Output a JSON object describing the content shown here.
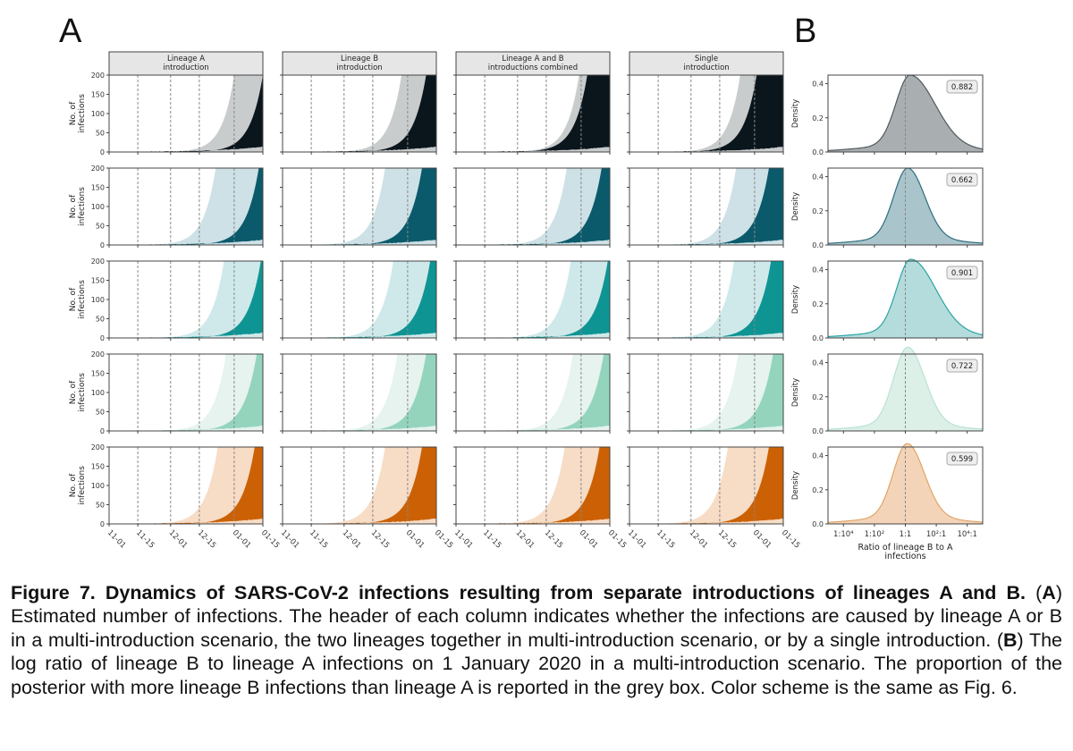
{
  "panels": {
    "a_label": "A",
    "b_label": "B"
  },
  "chart_data": [
    {
      "type": "area",
      "title": "A: Estimated number of infections",
      "ylabel": "No. of\ninfections",
      "ylim": [
        0,
        200
      ],
      "yticks": [
        "0",
        "50",
        "100",
        "150",
        "200"
      ],
      "xticks": [
        "11-01",
        "11-15",
        "12-01",
        "12-15",
        "01-01",
        "01-15"
      ],
      "vlines_at": [
        "11-15",
        "12-01",
        "12-15",
        "01-01"
      ],
      "columns": [
        "Lineage A\nintroduction",
        "Lineage B\nintroduction",
        "Lineage A and B\nintroductions combined",
        "Single\nintroduction"
      ],
      "rows": [
        {
          "light": "#c9cccd",
          "dark": "#0b161c"
        },
        {
          "light": "#cde1e6",
          "dark": "#0b5a6b"
        },
        {
          "light": "#cfe9ea",
          "dark": "#0f9494"
        },
        {
          "light": "#e6f3ef",
          "dark": "#94d4bd"
        },
        {
          "light": "#f7dcc6",
          "dark": "#cb6104"
        }
      ],
      "description": "Each panel shows two posterior bands (lighter = wide interval, darker = narrow interval) of cumulative infections growing exponentially from Nov 1 to Jan 15, with infections rising sharply toward ~200 around mid-December to early January."
    },
    {
      "type": "area",
      "title": "B: Log ratio of lineage B to lineage A infections on 1 January 2020",
      "xlabel": "Ratio of lineage B to A\ninfections",
      "ylabel": "Density",
      "ylim": [
        0,
        0.45
      ],
      "yticks": [
        "0.0",
        "0.2",
        "0.4"
      ],
      "xticks": [
        "1:10^4",
        "1:10^2",
        "1:1",
        "10^2:1",
        "10^4:1"
      ],
      "rows": [
        {
          "prob": "0.882",
          "peak_x": 0.3,
          "peak": 0.41,
          "line": "#4f5a5e",
          "fill": "#a9aeb0"
        },
        {
          "prob": "0.662",
          "peak_x": 0.15,
          "peak": 0.41,
          "line": "#2e6e7e",
          "fill": "#a9c4cb"
        },
        {
          "prob": "0.901",
          "peak_x": 0.35,
          "peak": 0.42,
          "line": "#2aa3a3",
          "fill": "#b4dcdc"
        },
        {
          "prob": "0.722",
          "peak_x": 0.15,
          "peak": 0.45,
          "line": "#b8e2d2",
          "fill": "#dcf0e8"
        },
        {
          "prob": "0.599",
          "peak_x": 0.12,
          "peak": 0.43,
          "line": "#e0a468",
          "fill": "#f4d4b8"
        }
      ]
    }
  ],
  "caption": {
    "bold_title": "Figure 7. Dynamics of SARS-CoV-2 infections resulting from separate introductions of lineages A and B.",
    "part_a_label": "A",
    "part_a_text": " Estimated number of infections. The header of each column indicates whether the infections are caused by lineage A or B in a multi-introduction scenario, the two lineages together in multi-introduction scenario, or by a single introduction.",
    "part_b_label": "B",
    "part_b_text": " The log ratio of lineage B to lineage A infections on 1 January 2020 in a multi-introduction scenario. The proportion of the posterior with more lineage B infections than lineage A is reported in the grey box. Color scheme is the same as Fig. 6."
  }
}
